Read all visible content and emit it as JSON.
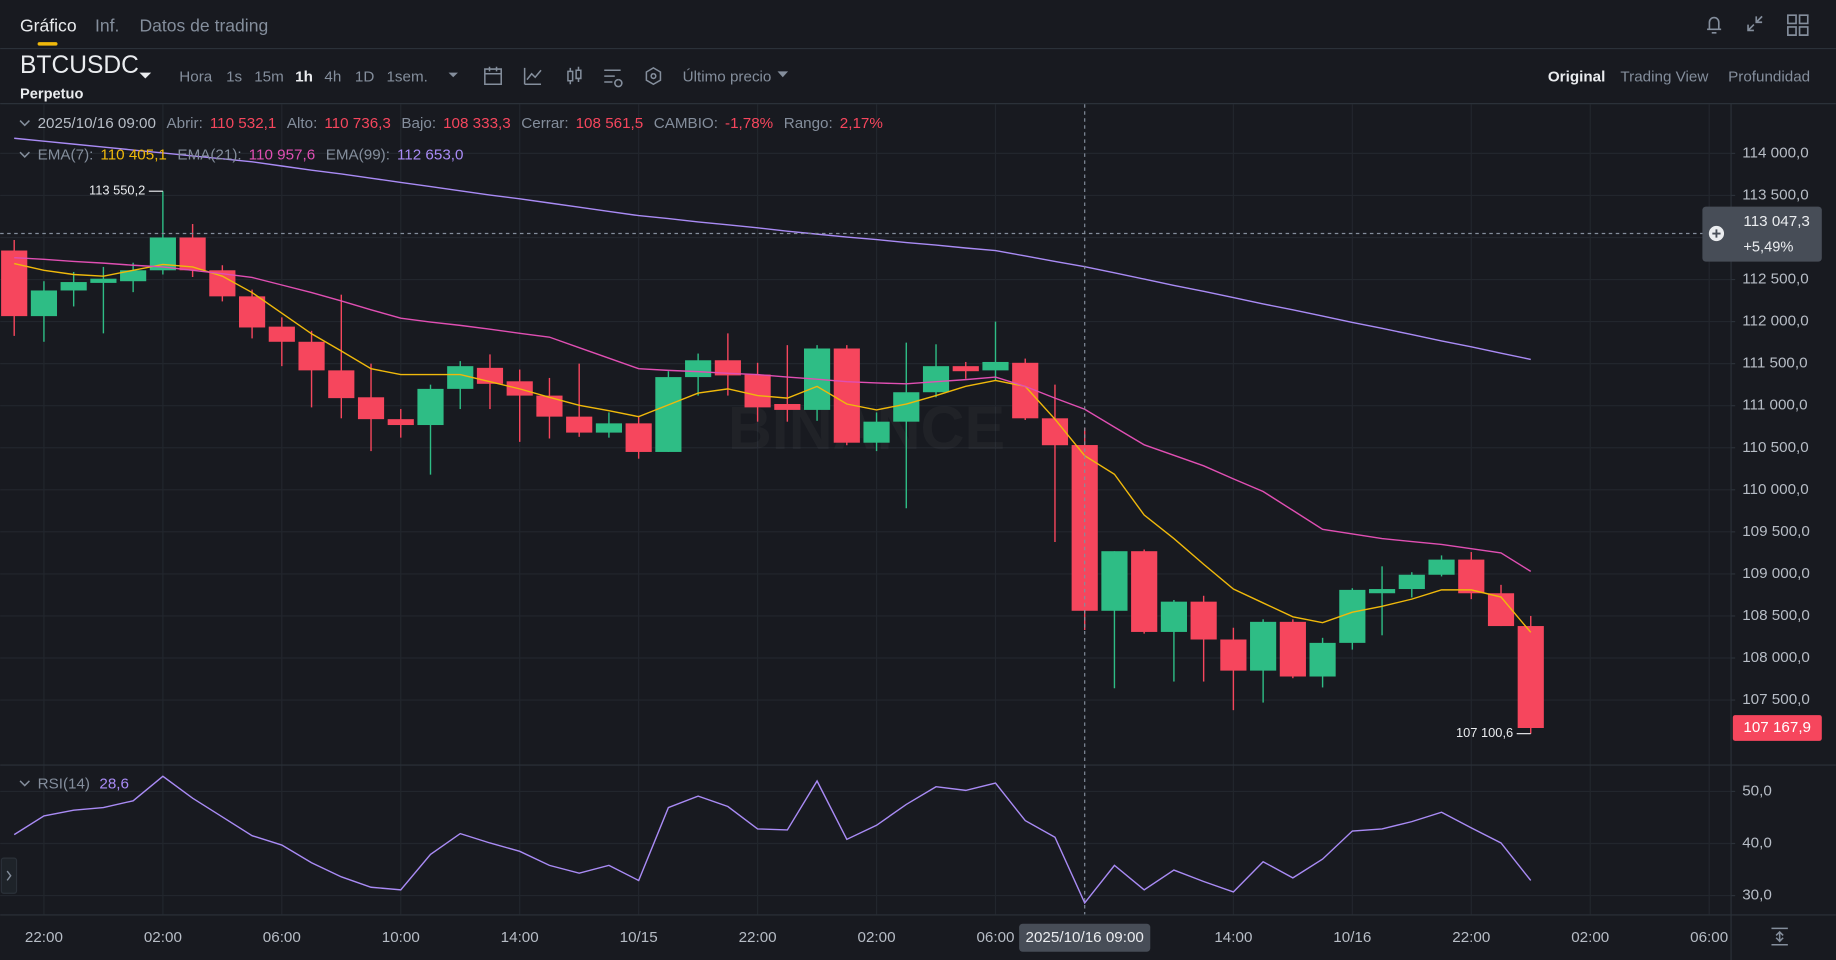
{
  "tabs": [
    "Gráfico",
    "Inf.",
    "Datos de trading"
  ],
  "symbol": "BTCUSDC",
  "contract": "Perpetuo",
  "intervals": [
    "Hora",
    "1s",
    "15m",
    "1h",
    "4h",
    "1D",
    "1sem."
  ],
  "price_source": "Último precio",
  "views": [
    "Original",
    "Trading View",
    "Profundidad"
  ],
  "ohlc_legend": {
    "time": "2025/10/16 09:00",
    "value_color": "#f6465d",
    "items": [
      {
        "label": "Abrir:",
        "value": "110 532,1"
      },
      {
        "label": "Alto:",
        "value": "110 736,3"
      },
      {
        "label": "Bajo:",
        "value": "108 333,3"
      },
      {
        "label": "Cerrar:",
        "value": "108 561,5"
      },
      {
        "label": "CAMBIO:",
        "value": "-1,78%"
      },
      {
        "label": "Rango:",
        "value": "2,17%"
      }
    ]
  },
  "watermark": "BINANCE",
  "chart_data": [
    {
      "type": "candlestick",
      "up_color": "#2ebd85",
      "down_color": "#f6465d",
      "grid": true,
      "open": [
        112845,
        112065,
        112370,
        112460,
        112480,
        112610,
        113000,
        112610,
        112300,
        111940,
        111760,
        111420,
        111100,
        110840,
        110770,
        111200,
        111450,
        111290,
        111120,
        110870,
        110680,
        110790,
        110450,
        111340,
        111540,
        111370,
        111020,
        110950,
        111680,
        110560,
        110810,
        111160,
        111470,
        111420,
        111510,
        110850,
        110532.1,
        108561.5,
        109270,
        108310,
        108670,
        108220,
        107850,
        108430,
        107780,
        108180,
        108770,
        108820,
        108990,
        109170,
        108770,
        108380
      ],
      "high": [
        112970,
        112480,
        112590,
        112650,
        112700,
        113550.2,
        113160,
        112670,
        112380,
        112050,
        111890,
        112320,
        111500,
        110960,
        111250,
        111530,
        111610,
        111430,
        111330,
        111500,
        110920,
        110880,
        111410,
        111620,
        111860,
        111510,
        111720,
        111720,
        111720,
        110920,
        111750,
        111730,
        111520,
        112000,
        111560,
        111250,
        110736.3,
        109270,
        109290,
        108690,
        108740,
        108360,
        108460,
        108460,
        108240,
        108830,
        109090,
        109020,
        109220,
        109260,
        108870,
        108500
      ],
      "low": [
        111830,
        111760,
        112180,
        111860,
        112350,
        112560,
        112530,
        112240,
        111800,
        111470,
        110980,
        110850,
        110460,
        110620,
        110180,
        110960,
        110960,
        110570,
        110610,
        110630,
        110620,
        110370,
        110450,
        111120,
        111120,
        110810,
        110810,
        110820,
        110530,
        110460,
        109780,
        111100,
        111320,
        111300,
        110830,
        109380,
        108333.3,
        107640,
        108290,
        107720,
        107720,
        107380,
        107470,
        107760,
        107650,
        108100,
        108270,
        108720,
        108970,
        108700,
        108380,
        107100.6
      ],
      "close": [
        112065,
        112370,
        112470,
        112510,
        112610,
        113000,
        112610,
        112300,
        111930,
        111760,
        111420,
        111090,
        110840,
        110770,
        111200,
        111470,
        111260,
        111120,
        110870,
        110680,
        110790,
        110450,
        111340,
        111540,
        111360,
        110980,
        110950,
        111680,
        110560,
        110810,
        111160,
        111470,
        111410,
        111520,
        110850,
        110530,
        108561.5,
        109270,
        108310,
        108670,
        108220,
        107850,
        108430,
        107780,
        108180,
        108810,
        108820,
        108990,
        109170,
        108770,
        108380,
        107167.9
      ],
      "overlays": [
        {
          "name": "EMA(7):",
          "color": "#f0b90b",
          "legend_label": "110 405,1",
          "values": [
            112690,
            112610,
            112560,
            112540,
            112610,
            112680,
            112650,
            112540,
            112345,
            112100,
            111855,
            111650,
            111440,
            111370,
            111370,
            111370,
            111285,
            111200,
            111100,
            111005,
            110940,
            110870,
            111010,
            111150,
            111200,
            111120,
            111090,
            111230,
            111020,
            110950,
            111020,
            111120,
            111230,
            111300,
            111230,
            110840,
            110405.1,
            110185,
            109700,
            109420,
            109115,
            108820,
            108655,
            108490,
            108420,
            108545,
            108615,
            108700,
            108810,
            108810,
            108725,
            108305
          ]
        },
        {
          "name": "EMA(21):",
          "color": "#e04fb3",
          "legend_label": "110 957,6",
          "values": [
            112760,
            112740,
            112715,
            112695,
            112670,
            112650,
            112610,
            112570,
            112525,
            112435,
            112345,
            112245,
            112140,
            112040,
            111995,
            111955,
            111910,
            111860,
            111815,
            111690,
            111565,
            111440,
            111420,
            111405,
            111385,
            111370,
            111340,
            111315,
            111285,
            111270,
            111260,
            111285,
            111310,
            111340,
            111230,
            111090,
            110957.6,
            110745,
            110535,
            110410,
            110285,
            110130,
            109980,
            109755,
            109530,
            109475,
            109420,
            109385,
            109350,
            109300,
            109250,
            109030
          ]
        },
        {
          "name": "EMA(99):",
          "color": "#a98bf5",
          "legend_label": "112 653,0",
          "values": [
            114180,
            114145,
            114110,
            114075,
            114040,
            114005,
            113970,
            113935,
            113900,
            113850,
            113800,
            113755,
            113705,
            113655,
            113605,
            113555,
            113505,
            113460,
            113410,
            113360,
            113310,
            113260,
            113225,
            113185,
            113150,
            113115,
            113075,
            113040,
            113005,
            112975,
            112940,
            112910,
            112875,
            112845,
            112780,
            112715,
            112653.0,
            112580,
            112505,
            112430,
            112360,
            112285,
            112210,
            112140,
            112065,
            111990,
            111920,
            111845,
            111770,
            111700,
            111625,
            111550
          ]
        }
      ],
      "xlim": [
        -0.4724,
        57.717
      ],
      "xticks": [
        {
          "value": 1,
          "label": "22:00"
        },
        {
          "value": 5,
          "label": "02:00"
        },
        {
          "value": 9,
          "label": "06:00"
        },
        {
          "value": 13,
          "label": "10:00"
        },
        {
          "value": 17,
          "label": "14:00"
        },
        {
          "value": 21,
          "label": "10/15"
        },
        {
          "value": 25,
          "label": "22:00"
        },
        {
          "value": 29,
          "label": "02:00"
        },
        {
          "value": 33,
          "label": "06:00"
        },
        {
          "value": 41,
          "label": "14:00"
        },
        {
          "value": 45,
          "label": "10/16"
        },
        {
          "value": 49,
          "label": "22:00"
        },
        {
          "value": 53,
          "label": "02:00"
        },
        {
          "value": 57,
          "label": "06:00"
        }
      ],
      "ylim": [
        106734,
        114543
      ],
      "yticks": [
        {
          "value": 107500,
          "label": "107 500,0"
        },
        {
          "value": 108000,
          "label": "108 000,0"
        },
        {
          "value": 108500,
          "label": "108 500,0"
        },
        {
          "value": 109000,
          "label": "109 000,0"
        },
        {
          "value": 109500,
          "label": "109 500,0"
        },
        {
          "value": 110000,
          "label": "110 000,0"
        },
        {
          "value": 110500,
          "label": "110 500,0"
        },
        {
          "value": 111000,
          "label": "111 000,0"
        },
        {
          "value": 111500,
          "label": "111 500,0"
        },
        {
          "value": 112000,
          "label": "112 000,0"
        },
        {
          "value": 112500,
          "label": "112 500,0"
        },
        {
          "value": 113000,
          "label": "113 000,0"
        },
        {
          "value": 113500,
          "label": "113 500,0"
        },
        {
          "value": 114000,
          "label": "114 000,0"
        }
      ],
      "annotations": [
        {
          "index": 5,
          "value": 113550.2,
          "label": "113 550,2"
        },
        {
          "index": 51,
          "value": 107100.6,
          "label": "107 100,6"
        }
      ],
      "last_price": 107167.9,
      "last_price_label": "107 167,9",
      "crosshair": {
        "index": 36,
        "time_label": "2025/10/16 09:00",
        "value": 113047.3,
        "value_label": "113 047,3",
        "change_label": "+5,49%"
      }
    },
    {
      "type": "line",
      "grid": true,
      "series": [
        {
          "name": "RSI(14)",
          "color": "#a98bf5",
          "legend_label": "28,6",
          "values": [
            41.7,
            45.3,
            46.4,
            46.9,
            48.2,
            52.9,
            48.7,
            45.1,
            41.5,
            39.7,
            36.3,
            33.6,
            31.6,
            31.1,
            37.9,
            41.9,
            40.1,
            38.5,
            35.8,
            34.3,
            35.8,
            32.9,
            46.9,
            49.1,
            47.1,
            42.8,
            42.6,
            52.0,
            40.8,
            43.5,
            47.5,
            50.9,
            50.2,
            51.6,
            44.4,
            41.2,
            28.6,
            35.8,
            31.1,
            34.9,
            32.7,
            30.7,
            36.5,
            33.4,
            37.0,
            42.4,
            42.8,
            44.2,
            46.0,
            43.0,
            40.1,
            32.9
          ]
        }
      ],
      "ylim": [
        26.4,
        54.72
      ],
      "yticks": [
        {
          "value": 30,
          "label": "30,0"
        },
        {
          "value": 40,
          "label": "40,0"
        },
        {
          "value": 50,
          "label": "50,0"
        }
      ]
    }
  ]
}
